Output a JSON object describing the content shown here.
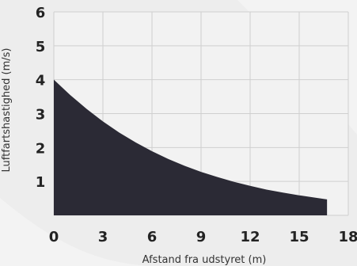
{
  "chart_data": {
    "type": "area",
    "xlabel": "Afstand fra udstyret (m)",
    "ylabel": "Luftfartshastighed (m/s)",
    "xlim": [
      0,
      18
    ],
    "ylim": [
      0,
      6
    ],
    "x_ticks": [
      "0",
      "3",
      "6",
      "9",
      "12",
      "15",
      "18"
    ],
    "y_ticks": [
      "1",
      "2",
      "3",
      "4",
      "5",
      "6"
    ],
    "grid": true,
    "series": [
      {
        "x": [
          0,
          1,
          2,
          3,
          4,
          5,
          6,
          7,
          8,
          9,
          10,
          11,
          12,
          13,
          14,
          15,
          16,
          16.7
        ],
        "values": [
          4.0,
          3.55,
          3.14,
          2.77,
          2.44,
          2.15,
          1.89,
          1.66,
          1.46,
          1.28,
          1.13,
          0.99,
          0.87,
          0.76,
          0.67,
          0.59,
          0.52,
          0.47
        ]
      }
    ],
    "colors": {
      "fill": "#2b2a35",
      "grid": "#cfcfcf",
      "plot_bg": "#f2f2f2",
      "page_bg": "#ededed"
    }
  }
}
